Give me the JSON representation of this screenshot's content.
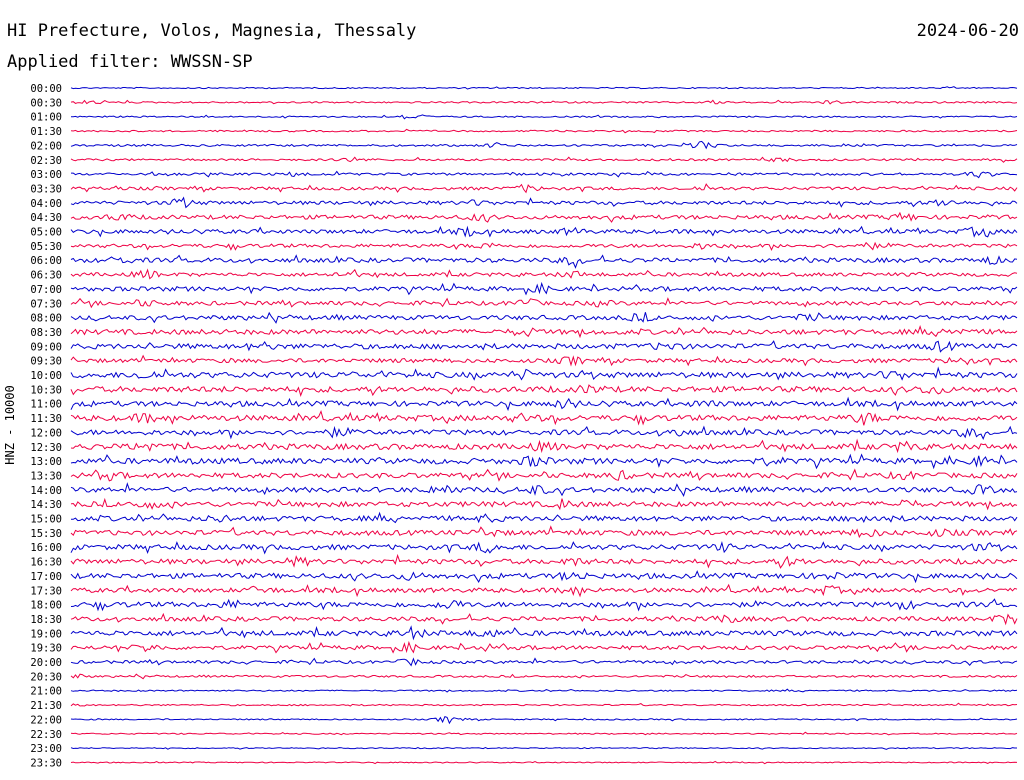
{
  "header": {
    "station": "HI Prefecture, Volos, Magnesia, Thessaly",
    "filter": "Applied filter: WWSSN-SP",
    "date": "2024-06-20"
  },
  "chart_data": {
    "type": "line",
    "title": "HI Prefecture, Volos, Magnesia, Thessaly",
    "date": "2024-06-20",
    "filter": "WWSSN-SP",
    "ylabel": "HNZ - 10000",
    "row_labels": [
      "00:00",
      "00:30",
      "01:00",
      "01:30",
      "02:00",
      "02:30",
      "03:00",
      "03:30",
      "04:00",
      "04:30",
      "05:00",
      "05:30",
      "06:00",
      "06:30",
      "07:00",
      "07:30",
      "08:00",
      "08:30",
      "09:00",
      "09:30",
      "10:00",
      "10:30",
      "11:00",
      "11:30",
      "12:00",
      "12:30",
      "13:00",
      "13:30",
      "14:00",
      "14:30",
      "15:00",
      "15:30",
      "16:00",
      "16:30",
      "17:00",
      "17:30",
      "18:00",
      "18:30",
      "19:00",
      "19:30",
      "20:00",
      "20:30",
      "21:00",
      "21:30",
      "22:00",
      "22:30",
      "23:00",
      "23:30"
    ],
    "row_colors": [
      "#0000cc",
      "#ee0044"
    ],
    "series": [
      {
        "noise": 0.6,
        "events": []
      },
      {
        "noise": 0.8,
        "events": [
          [
            0.02,
            1.5
          ],
          [
            0.68,
            1.5
          ],
          [
            0.8,
            1.5
          ]
        ]
      },
      {
        "noise": 0.7,
        "events": [
          [
            0.36,
            3.5
          ]
        ]
      },
      {
        "noise": 0.8,
        "events": []
      },
      {
        "noise": 1.0,
        "events": [
          [
            0.45,
            2
          ],
          [
            0.67,
            4
          ]
        ]
      },
      {
        "noise": 1.0,
        "events": [
          [
            0.3,
            2
          ],
          [
            0.75,
            1.5
          ]
        ]
      },
      {
        "noise": 1.2,
        "events": [
          [
            0.24,
            2
          ],
          [
            0.96,
            3
          ]
        ]
      },
      {
        "noise": 1.5,
        "events": [
          [
            0.48,
            3
          ],
          [
            0.67,
            2
          ]
        ]
      },
      {
        "noise": 1.8,
        "events": [
          [
            0.12,
            3.5
          ],
          [
            0.43,
            2
          ],
          [
            0.92,
            3
          ]
        ]
      },
      {
        "noise": 2.0,
        "events": [
          [
            0.05,
            2.5
          ],
          [
            0.43,
            2.5
          ],
          [
            0.88,
            3
          ]
        ]
      },
      {
        "noise": 2.0,
        "events": [
          [
            0.42,
            3
          ],
          [
            0.53,
            2.5
          ],
          [
            0.96,
            4
          ]
        ]
      },
      {
        "noise": 1.8,
        "events": [
          [
            0.44,
            2
          ],
          [
            0.67,
            2.5
          ],
          [
            0.84,
            3
          ]
        ]
      },
      {
        "noise": 2.2,
        "events": [
          [
            0.05,
            2.5
          ],
          [
            0.53,
            3.5
          ],
          [
            0.97,
            3
          ]
        ]
      },
      {
        "noise": 1.8,
        "events": [
          [
            0.08,
            3.5
          ],
          [
            0.29,
            2
          ],
          [
            0.53,
            2.5
          ]
        ]
      },
      {
        "noise": 2.2,
        "events": [
          [
            0.5,
            2.5
          ]
        ]
      },
      {
        "noise": 2.0,
        "events": [
          [
            0.08,
            2
          ],
          [
            0.48,
            3.5
          ],
          [
            0.56,
            2
          ]
        ]
      },
      {
        "noise": 2.2,
        "events": [
          [
            0.6,
            2.5
          ],
          [
            0.78,
            2
          ]
        ]
      },
      {
        "noise": 2.5,
        "events": [
          [
            0.48,
            3
          ],
          [
            0.93,
            2.5
          ]
        ]
      },
      {
        "noise": 2.5,
        "events": [
          [
            0.2,
            3
          ],
          [
            0.63,
            3
          ],
          [
            0.92,
            3.5
          ]
        ]
      },
      {
        "noise": 2.0,
        "events": [
          [
            0.53,
            3
          ],
          [
            0.94,
            3
          ]
        ]
      },
      {
        "noise": 2.8,
        "events": [
          [
            0.08,
            3
          ],
          [
            0.48,
            3.5
          ],
          [
            0.87,
            3.5
          ]
        ]
      },
      {
        "noise": 2.8,
        "events": [
          [
            0.55,
            3
          ],
          [
            0.91,
            3.5
          ]
        ]
      },
      {
        "noise": 2.5,
        "events": [
          [
            0.52,
            3.5
          ],
          [
            0.67,
            2
          ]
        ]
      },
      {
        "noise": 2.8,
        "events": [
          [
            0.08,
            3
          ],
          [
            0.48,
            3
          ],
          [
            0.84,
            3.5
          ]
        ]
      },
      {
        "noise": 2.5,
        "events": [
          [
            0.28,
            3
          ],
          [
            0.64,
            3
          ],
          [
            0.95,
            3.5
          ]
        ]
      },
      {
        "noise": 2.8,
        "events": [
          [
            0.08,
            3.5
          ],
          [
            0.5,
            3
          ],
          [
            0.88,
            3
          ]
        ]
      },
      {
        "noise": 2.8,
        "events": [
          [
            0.49,
            4
          ],
          [
            0.74,
            2.5
          ],
          [
            0.96,
            3
          ]
        ]
      },
      {
        "noise": 2.5,
        "events": [
          [
            0.04,
            3
          ],
          [
            0.58,
            3
          ],
          [
            0.88,
            2.5
          ]
        ]
      },
      {
        "noise": 2.5,
        "events": [
          [
            0.39,
            3
          ],
          [
            0.49,
            3.5
          ],
          [
            0.96,
            3
          ]
        ]
      },
      {
        "noise": 2.5,
        "events": [
          [
            0.08,
            3
          ],
          [
            0.52,
            3.5
          ],
          [
            0.88,
            3
          ]
        ]
      },
      {
        "noise": 2.5,
        "events": [
          [
            0.16,
            2.5
          ],
          [
            0.44,
            2.5
          ],
          [
            0.84,
            3
          ]
        ]
      },
      {
        "noise": 2.5,
        "events": [
          [
            0.44,
            2.5
          ],
          [
            0.84,
            3
          ],
          [
            0.92,
            2
          ]
        ]
      },
      {
        "noise": 2.5,
        "events": [
          [
            0.44,
            4
          ],
          [
            0.69,
            2.5
          ],
          [
            0.96,
            2
          ]
        ]
      },
      {
        "noise": 2.5,
        "events": [
          [
            0.24,
            3
          ],
          [
            0.53,
            2.5
          ],
          [
            0.76,
            3
          ]
        ]
      },
      {
        "noise": 2.5,
        "events": [
          [
            0.36,
            2.5
          ],
          [
            0.53,
            3.5
          ],
          [
            0.8,
            2.5
          ]
        ]
      },
      {
        "noise": 2.2,
        "events": [
          [
            0.2,
            3
          ],
          [
            0.53,
            3
          ],
          [
            0.8,
            3
          ]
        ]
      },
      {
        "noise": 2.5,
        "events": [
          [
            0.17,
            3
          ],
          [
            0.4,
            3.5
          ],
          [
            0.88,
            3
          ]
        ]
      },
      {
        "noise": 2.2,
        "events": [
          [
            0.69,
            3
          ],
          [
            0.99,
            4
          ]
        ]
      },
      {
        "noise": 2.5,
        "events": [
          [
            0.36,
            4
          ],
          [
            0.44,
            3
          ]
        ]
      },
      {
        "noise": 2.0,
        "events": [
          [
            0.08,
            3
          ],
          [
            0.36,
            3
          ],
          [
            0.44,
            2
          ]
        ]
      },
      {
        "noise": 1.5,
        "events": [
          [
            0.36,
            2.5
          ]
        ]
      },
      {
        "noise": 1.0,
        "events": [
          [
            0.0,
            3
          ]
        ]
      },
      {
        "noise": 0.7,
        "events": []
      },
      {
        "noise": 0.7,
        "events": [
          [
            0.0,
            1.5
          ]
        ]
      },
      {
        "noise": 0.6,
        "events": [
          [
            0.4,
            3.5
          ]
        ]
      },
      {
        "noise": 0.6,
        "events": []
      },
      {
        "noise": 0.5,
        "events": []
      },
      {
        "noise": 0.5,
        "events": []
      }
    ]
  }
}
